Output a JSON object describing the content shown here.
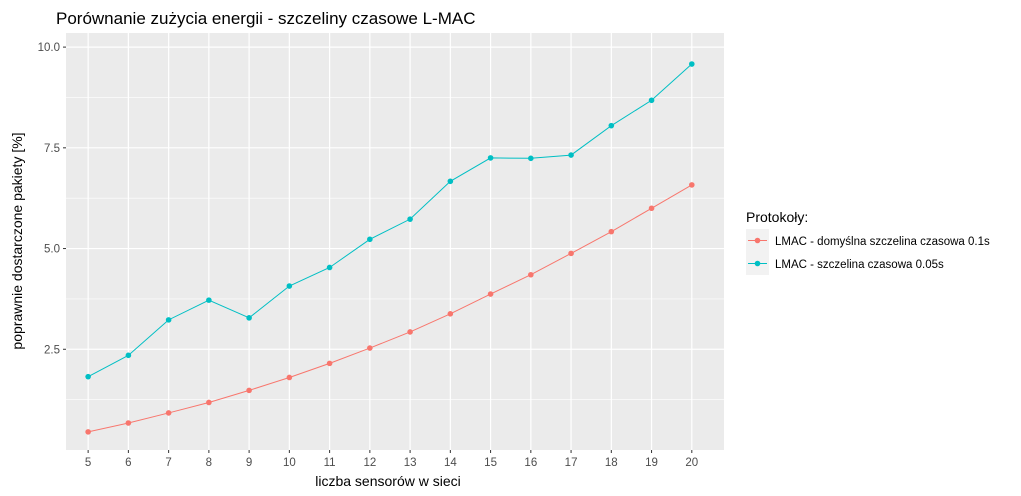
{
  "chart_data": {
    "type": "line",
    "title": "Porównanie zużycia energii - szczeliny czasowe L-MAC",
    "xlabel": "liczba sensorów w sieci",
    "ylabel": "poprawnie dostarczone pakiety [%]",
    "x": [
      5,
      6,
      7,
      8,
      9,
      10,
      11,
      12,
      13,
      14,
      15,
      16,
      17,
      18,
      19,
      20
    ],
    "x_ticks": [
      "5",
      "6",
      "7",
      "8",
      "9",
      "10",
      "11",
      "12",
      "13",
      "14",
      "15",
      "16",
      "17",
      "18",
      "19",
      "20"
    ],
    "y_ticks": [
      "2.5",
      "5.0",
      "7.5",
      "10.0"
    ],
    "xlim": [
      4.45,
      20.8
    ],
    "ylim": [
      0.0,
      10.35
    ],
    "grid": true,
    "legend": {
      "title": "Protokoły:",
      "placement": "right"
    },
    "series": [
      {
        "name": "LMAC - domyślna szczelina czasowa 0.1s",
        "color": "#F8766D",
        "values": [
          0.45,
          0.67,
          0.92,
          1.18,
          1.48,
          1.8,
          2.15,
          2.53,
          2.93,
          3.38,
          3.87,
          4.35,
          4.88,
          5.42,
          6.0,
          6.58
        ]
      },
      {
        "name": "LMAC - szczelina czasowa 0.05s",
        "color": "#00BFC4",
        "values": [
          1.82,
          2.35,
          3.23,
          3.72,
          3.28,
          4.07,
          4.53,
          5.23,
          5.73,
          6.67,
          7.25,
          7.24,
          7.32,
          8.05,
          8.68,
          9.58
        ]
      }
    ]
  }
}
